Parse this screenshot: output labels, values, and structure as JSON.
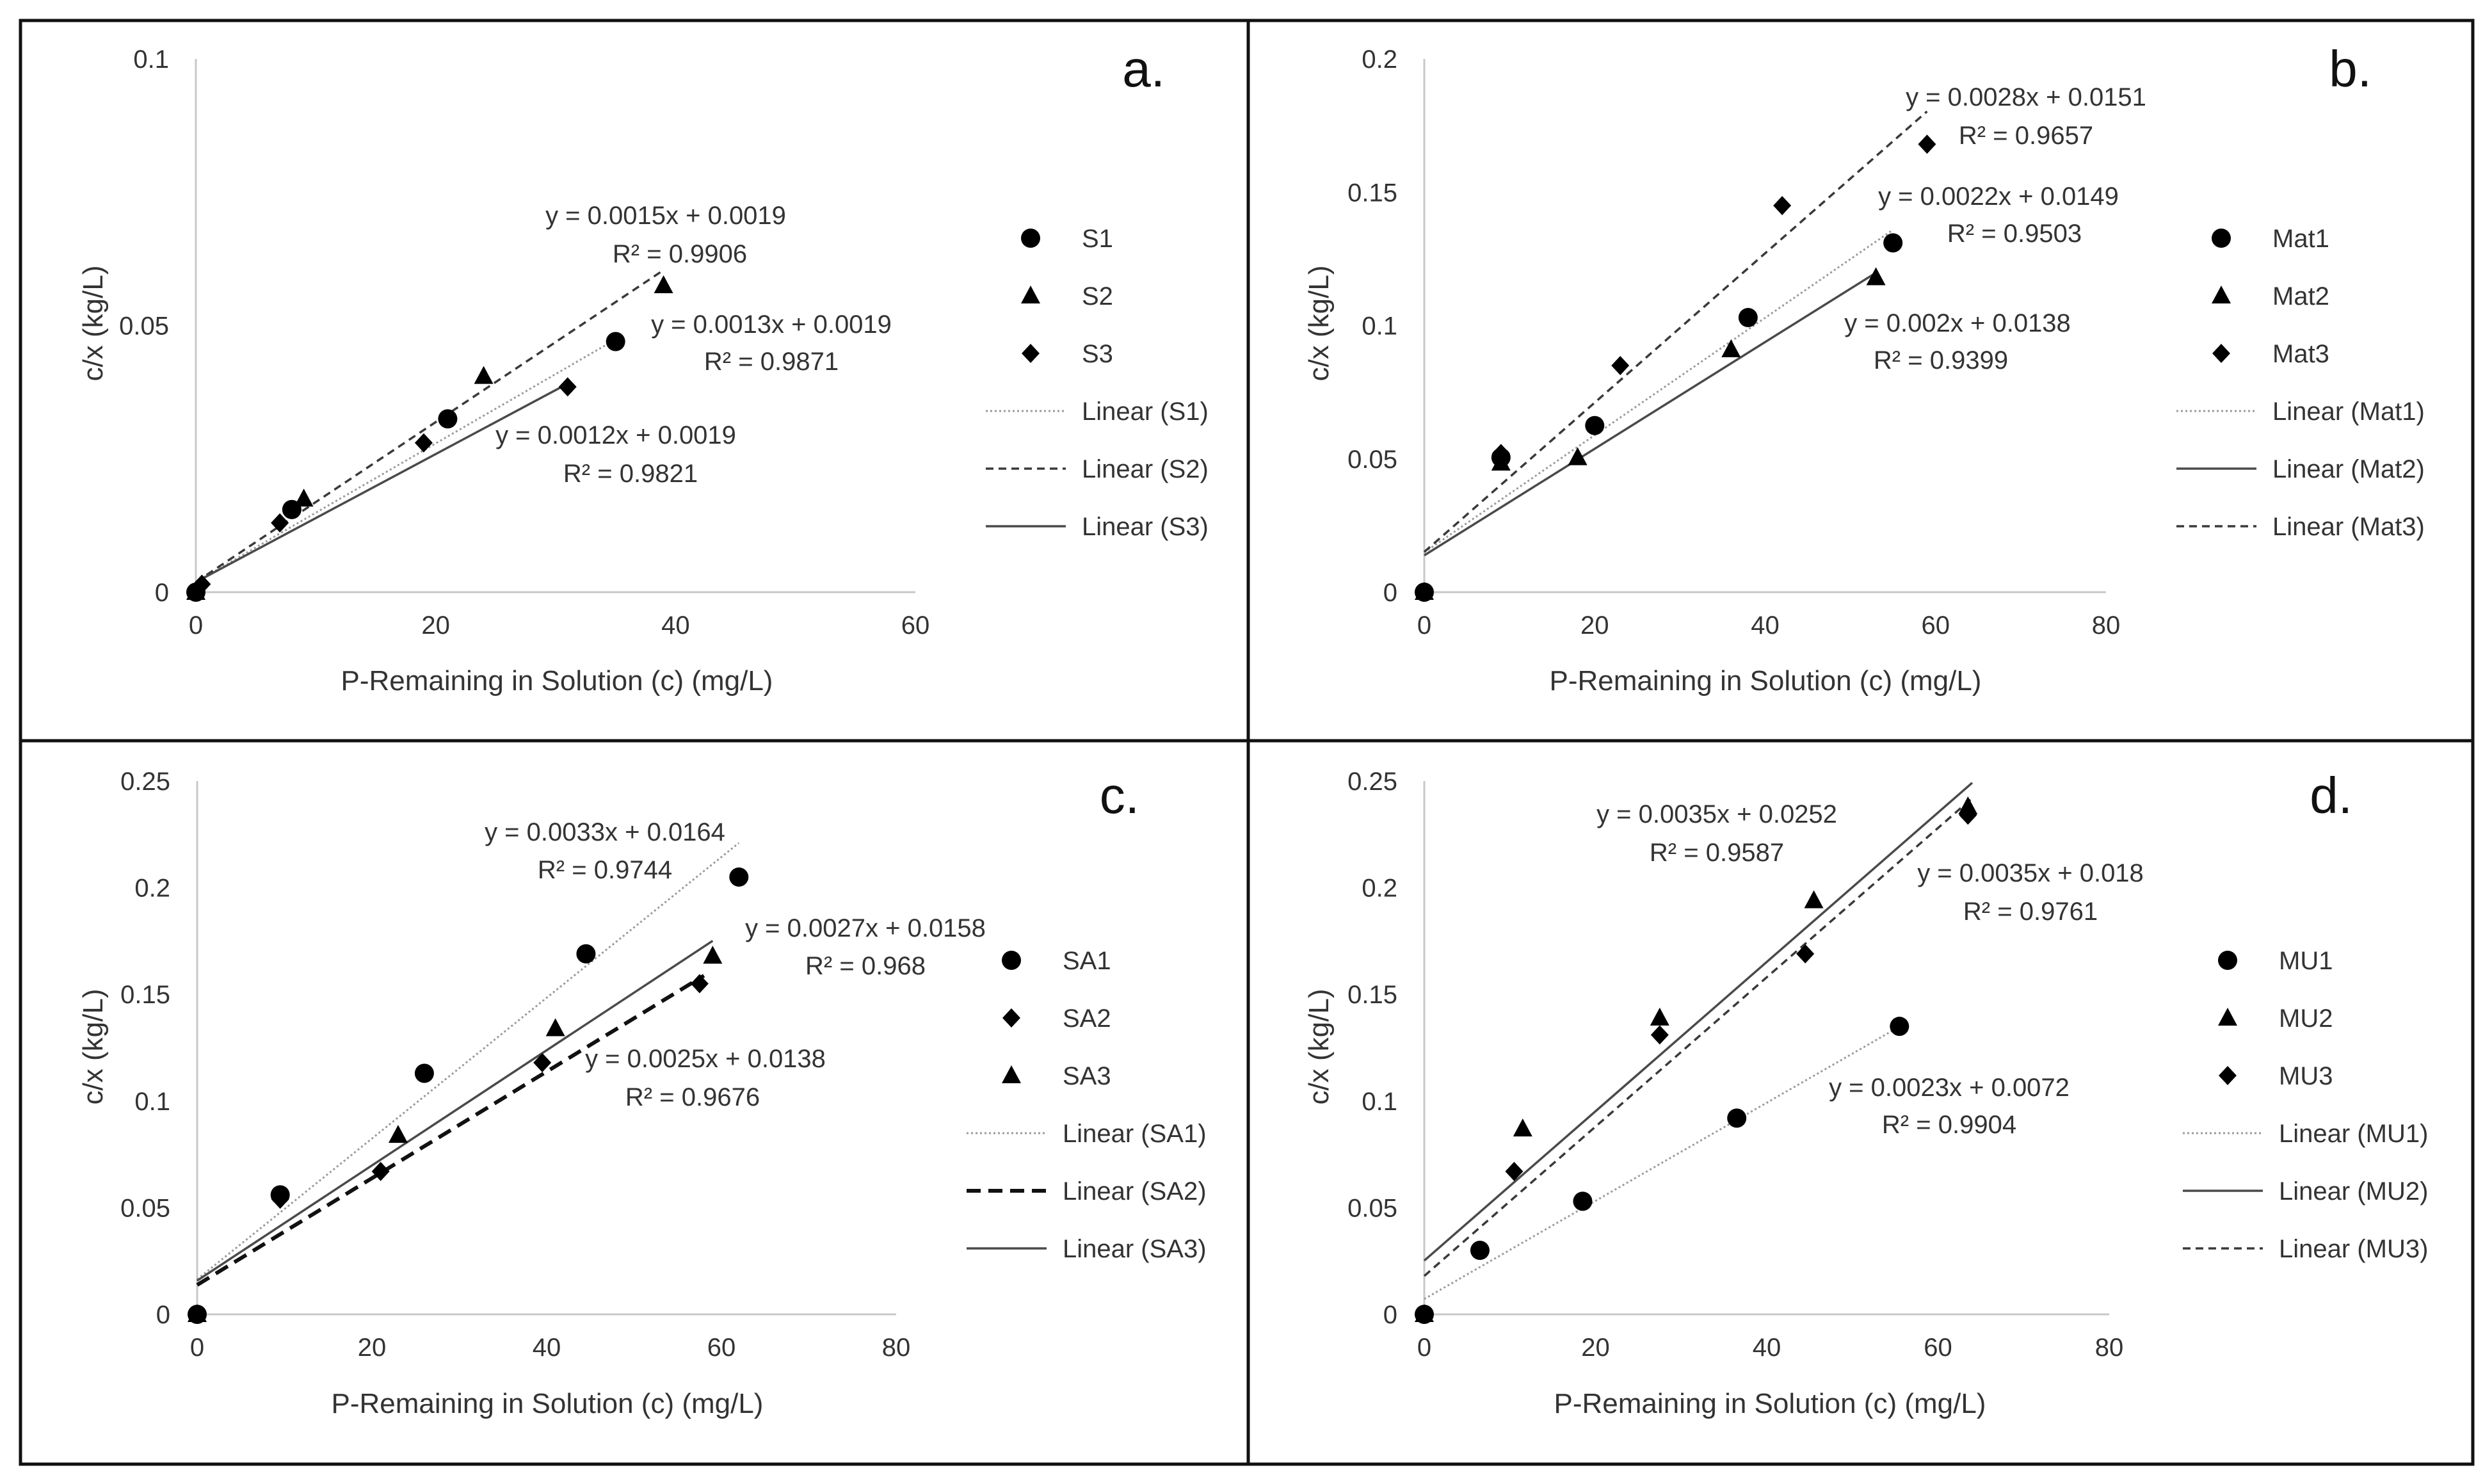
{
  "chart_data": [
    {
      "type": "scatter",
      "panel": "a.",
      "xlabel": "P-Remaining in Solution (c) (mg/L)",
      "ylabel": "c/x (kg/L)",
      "xlim": [
        0,
        60
      ],
      "ylim": [
        0,
        0.1
      ],
      "x_ticks": [
        "0",
        "20",
        "40",
        "60"
      ],
      "y_ticks": [
        "0",
        "0.05",
        "0.1"
      ],
      "grid": false,
      "legend_position": "right",
      "series": [
        {
          "name": "S1",
          "marker": "circle",
          "trend_name": "Linear (S1)",
          "trend_style": "dotted",
          "x": [
            0,
            8,
            21,
            35
          ],
          "y": [
            0.0,
            0.0155,
            0.0325,
            0.047
          ],
          "equation": "y = 0.0013x + 0.0019",
          "r2": "R² = 0.9871",
          "slope": 0.0013,
          "intercept": 0.0019,
          "fit_x": [
            0,
            35
          ]
        },
        {
          "name": "S2",
          "marker": "triangle",
          "trend_name": "Linear (S2)",
          "trend_style": "dashed",
          "x": [
            0,
            9,
            24,
            39
          ],
          "y": [
            0.0,
            0.0175,
            0.0405,
            0.0575
          ],
          "equation": "y = 0.0015x + 0.0019",
          "r2": "R² = 0.9906",
          "slope": 0.0015,
          "intercept": 0.0019,
          "fit_x": [
            0,
            39
          ]
        },
        {
          "name": "S3",
          "marker": "diamond",
          "trend_name": "Linear (S3)",
          "trend_style": "solid",
          "x": [
            0.5,
            7,
            19,
            31
          ],
          "y": [
            0.0015,
            0.013,
            0.028,
            0.0385
          ],
          "equation": "y = 0.0012x + 0.0019",
          "r2": "R² = 0.9821",
          "slope": 0.0012,
          "intercept": 0.0019,
          "fit_x": [
            0,
            31
          ]
        }
      ]
    },
    {
      "type": "scatter",
      "panel": "b.",
      "xlabel": "P-Remaining in Solution (c) (mg/L)",
      "ylabel": "c/x (kg/L)",
      "xlim": [
        0,
        80
      ],
      "ylim": [
        0,
        0.2
      ],
      "x_ticks": [
        "0",
        "20",
        "40",
        "60",
        "80"
      ],
      "y_ticks": [
        "0",
        "0.05",
        "0.1",
        "0.15",
        "0.2"
      ],
      "grid": false,
      "legend_position": "right",
      "series": [
        {
          "name": "Mat1",
          "marker": "circle",
          "trend_name": "Linear (Mat1)",
          "trend_style": "dotted",
          "x": [
            0,
            9,
            20,
            38,
            55
          ],
          "y": [
            0.0,
            0.0505,
            0.0625,
            0.103,
            0.131
          ],
          "equation": "y = 0.0022x + 0.0149",
          "r2": "R² = 0.9503",
          "slope": 0.0022,
          "intercept": 0.0149,
          "fit_x": [
            0,
            55
          ]
        },
        {
          "name": "Mat2",
          "marker": "triangle",
          "trend_name": "Linear (Mat2)",
          "trend_style": "solid",
          "x": [
            0,
            9,
            18,
            36,
            53
          ],
          "y": [
            0.0,
            0.0485,
            0.0505,
            0.091,
            0.118
          ],
          "equation": "y = 0.002x + 0.0138",
          "r2": "R² = 0.9399",
          "slope": 0.002,
          "intercept": 0.0138,
          "fit_x": [
            0,
            53
          ]
        },
        {
          "name": "Mat3",
          "marker": "diamond",
          "trend_name": "Linear (Mat3)",
          "trend_style": "dashed",
          "x": [
            0,
            9,
            23,
            42,
            59
          ],
          "y": [
            0.0,
            0.052,
            0.085,
            0.145,
            0.168
          ],
          "equation": "y = 0.0028x + 0.0151",
          "r2": "R² = 0.9657",
          "slope": 0.0028,
          "intercept": 0.0151,
          "fit_x": [
            0,
            59
          ]
        }
      ]
    },
    {
      "type": "scatter",
      "panel": "c.",
      "xlabel": "P-Remaining in Solution (c) (mg/L)",
      "ylabel": "c/x (kg/L)",
      "xlim": [
        0,
        80
      ],
      "ylim": [
        0,
        0.25
      ],
      "x_ticks": [
        "0",
        "20",
        "40",
        "60",
        "80"
      ],
      "y_ticks": [
        "0",
        "0.05",
        "0.1",
        "0.15",
        "0.2",
        "0.25"
      ],
      "grid": false,
      "legend_position": "right",
      "series": [
        {
          "name": "SA1",
          "marker": "circle",
          "trend_name": "Linear (SA1)",
          "trend_style": "dotted",
          "x": [
            0,
            9.5,
            26,
            44.5,
            62
          ],
          "y": [
            0.0,
            0.056,
            0.113,
            0.169,
            0.205
          ],
          "equation": "y = 0.0033x + 0.0164",
          "r2": "R² = 0.9744",
          "slope": 0.0033,
          "intercept": 0.0164,
          "fit_x": [
            0,
            62
          ]
        },
        {
          "name": "SA2",
          "marker": "diamond",
          "trend_name": "Linear (SA2)",
          "trend_style": "bold-dashed",
          "x": [
            0,
            9.5,
            21,
            39.5,
            57.5
          ],
          "y": [
            0.0,
            0.054,
            0.067,
            0.118,
            0.155
          ],
          "equation": "y = 0.0025x + 0.0138",
          "r2": "R² = 0.9676",
          "slope": 0.0025,
          "intercept": 0.0138,
          "fit_x": [
            0,
            58
          ]
        },
        {
          "name": "SA3",
          "marker": "triangle",
          "trend_name": "Linear (SA3)",
          "trend_style": "solid",
          "x": [
            0,
            23,
            41,
            59
          ],
          "y": [
            0.0,
            0.084,
            0.134,
            0.168
          ],
          "equation": "y = 0.0027x + 0.0158",
          "r2": "R² = 0.968",
          "slope": 0.0027,
          "intercept": 0.0158,
          "fit_x": [
            0,
            59
          ]
        }
      ]
    },
    {
      "type": "scatter",
      "panel": "d.",
      "xlabel": "P-Remaining in Solution (c) (mg/L)",
      "ylabel": "c/x (kg/L)",
      "xlim": [
        0,
        80
      ],
      "ylim": [
        0,
        0.25
      ],
      "x_ticks": [
        "0",
        "20",
        "40",
        "60",
        "80"
      ],
      "y_ticks": [
        "0",
        "0.05",
        "0.1",
        "0.15",
        "0.2",
        "0.25"
      ],
      "grid": false,
      "legend_position": "right",
      "series": [
        {
          "name": "MU1",
          "marker": "circle",
          "trend_name": "Linear (MU1)",
          "trend_style": "dotted",
          "x": [
            0,
            6.5,
            18.5,
            36.5,
            55.5
          ],
          "y": [
            0.0,
            0.03,
            0.053,
            0.092,
            0.135
          ],
          "equation": "y = 0.0023x + 0.0072",
          "r2": "R² = 0.9904",
          "slope": 0.0023,
          "intercept": 0.0072,
          "fit_x": [
            0,
            55.5
          ]
        },
        {
          "name": "MU2",
          "marker": "triangle",
          "trend_name": "Linear (MU2)",
          "trend_style": "solid",
          "x": [
            0,
            11.5,
            27.5,
            45.5,
            63.5
          ],
          "y": [
            0.0,
            0.087,
            0.139,
            0.194,
            0.238
          ],
          "equation": "y = 0.0035x + 0.0252",
          "r2": "R² = 0.9587",
          "slope": 0.0035,
          "intercept": 0.0252,
          "fit_x": [
            0,
            64
          ]
        },
        {
          "name": "MU3",
          "marker": "diamond",
          "trend_name": "Linear (MU3)",
          "trend_style": "dashed",
          "x": [
            0,
            10.5,
            27.5,
            44.5,
            63.5
          ],
          "y": [
            0.0,
            0.067,
            0.131,
            0.169,
            0.234
          ],
          "equation": "y = 0.0035x + 0.018",
          "r2": "R² = 0.9761",
          "slope": 0.0035,
          "intercept": 0.018,
          "fit_x": [
            0,
            64
          ]
        }
      ]
    }
  ]
}
